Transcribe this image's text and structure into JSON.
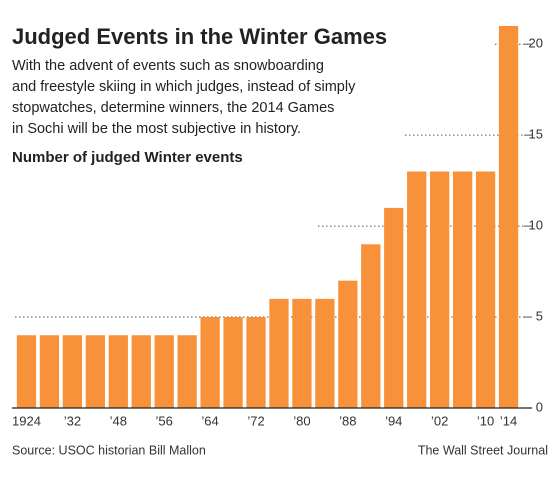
{
  "chart_data": {
    "type": "bar",
    "title": "Judged Events in the Winter Games",
    "subtitle": [
      "With the advent of events such as snowboarding",
      "and freestyle skiing in which judges, instead of simply",
      "stopwatches, determine winners, the 2014 Games",
      "in Sochi will be the most subjective in history."
    ],
    "y_label": "Number of judged Winter events",
    "categories": [
      "1924",
      null,
      "’32",
      null,
      "’48",
      null,
      "’56",
      null,
      "’64",
      null,
      "’72",
      null,
      "’80",
      null,
      "’88",
      null,
      "’94",
      null,
      "’02",
      null,
      "’10",
      "’14"
    ],
    "values": [
      4,
      4,
      4,
      4,
      4,
      4,
      4,
      4,
      5,
      5,
      5,
      6,
      6,
      6,
      7,
      9,
      11,
      13,
      13,
      13,
      13,
      21
    ],
    "color": "#f7923a",
    "ylim": [
      0,
      21
    ],
    "yticks": [
      0,
      5,
      10,
      15,
      20
    ],
    "grid": true,
    "source": "Source: USOC historian Bill Mallon",
    "credit": "The Wall Street Journal"
  }
}
